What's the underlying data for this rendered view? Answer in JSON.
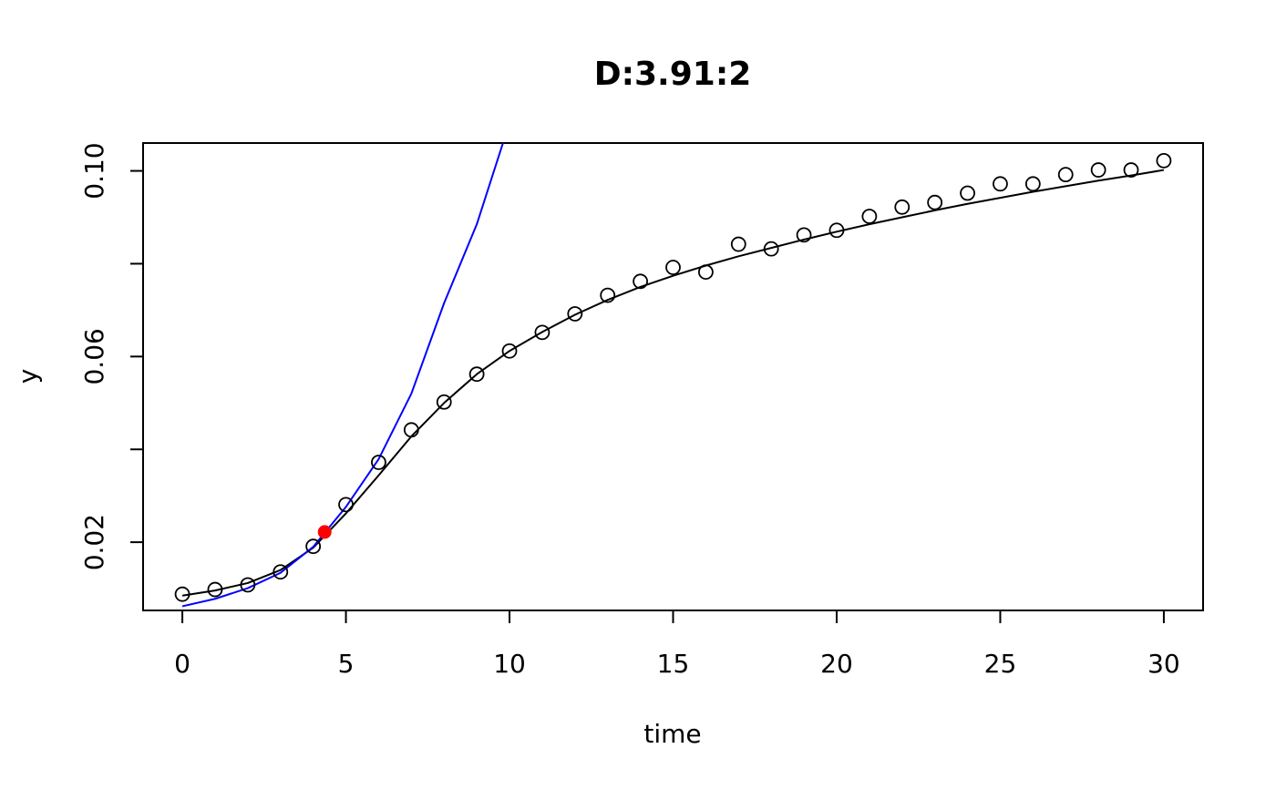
{
  "chart_data": {
    "type": "scatter",
    "title": "D:3.91:2",
    "xlabel": "time",
    "ylabel": "y",
    "xlim": [
      -1.2,
      31.2
    ],
    "ylim": [
      0.0053,
      0.106
    ],
    "x_ticks": [
      0,
      5,
      10,
      15,
      20,
      25,
      30
    ],
    "y_ticks": [
      0.02,
      0.04,
      0.06,
      0.08,
      0.1
    ],
    "y_tick_labels": [
      "0.02",
      "",
      "0.06",
      "",
      "0.10"
    ],
    "grid": false,
    "series": [
      {
        "kind": "points",
        "marker": "open-circle",
        "color": "#000000",
        "x": [
          0,
          1,
          2,
          3,
          4,
          5,
          6,
          7,
          8,
          9,
          10,
          11,
          12,
          13,
          14,
          15,
          16,
          17,
          18,
          19,
          20,
          21,
          22,
          23,
          24,
          25,
          26,
          27,
          28,
          29,
          30
        ],
        "y": [
          0.0088,
          0.0098,
          0.0108,
          0.0136,
          0.0191,
          0.0281,
          0.0372,
          0.0442,
          0.0502,
          0.0562,
          0.0612,
          0.0652,
          0.0692,
          0.0732,
          0.0762,
          0.0792,
          0.0782,
          0.0842,
          0.0832,
          0.0862,
          0.0872,
          0.0902,
          0.0922,
          0.0932,
          0.0952,
          0.0972,
          0.0972,
          0.0992,
          0.1002,
          0.1002,
          0.1022
        ]
      },
      {
        "kind": "line",
        "color": "#000000",
        "x": [
          0,
          1,
          2,
          3,
          4,
          5,
          6,
          7,
          8,
          9,
          10,
          11,
          12,
          13,
          14,
          15,
          16,
          17,
          18,
          19,
          20,
          21,
          22,
          23,
          24,
          25,
          26,
          27,
          28,
          29,
          30
        ],
        "y": [
          0.0085,
          0.0096,
          0.0112,
          0.014,
          0.0188,
          0.0262,
          0.0344,
          0.0428,
          0.05,
          0.0562,
          0.0612,
          0.0653,
          0.069,
          0.0722,
          0.075,
          0.0774,
          0.0796,
          0.0816,
          0.0834,
          0.0852,
          0.0869,
          0.0885,
          0.09,
          0.0915,
          0.0929,
          0.0942,
          0.0955,
          0.0967,
          0.0979,
          0.099,
          0.1002
        ]
      },
      {
        "kind": "line",
        "color": "#0000ff",
        "x": [
          0,
          1,
          2,
          3,
          4,
          5,
          6,
          7,
          8,
          9,
          9.8
        ],
        "y": [
          0.0062,
          0.0078,
          0.0101,
          0.0134,
          0.019,
          0.0276,
          0.0379,
          0.052,
          0.0715,
          0.0885,
          0.106
        ]
      },
      {
        "kind": "points",
        "marker": "filled-circle",
        "color": "#ff0000",
        "x": [
          4.35
        ],
        "y": [
          0.0222
        ]
      }
    ]
  }
}
